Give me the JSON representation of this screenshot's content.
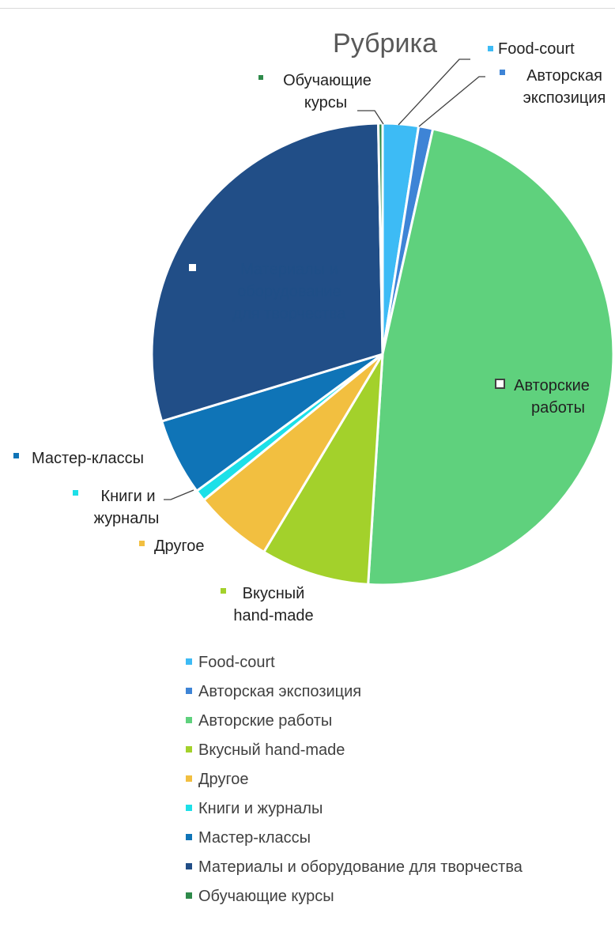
{
  "chart_data": {
    "type": "pie",
    "title": "Рубрика",
    "slices": [
      {
        "label": "Food-court",
        "value": 2.5,
        "color": "#3dbbf5"
      },
      {
        "label": "Авторская экспозиция",
        "value": 1.0,
        "color": "#3e84d6"
      },
      {
        "label": "Авторские работы",
        "value": 47.5,
        "color": "#5fd17d"
      },
      {
        "label": "Вкусный hand-made",
        "value": 7.6,
        "color": "#a3d12b"
      },
      {
        "label": "Другое",
        "value": 5.5,
        "color": "#f2bf40"
      },
      {
        "label": "Книги и журналы",
        "value": 0.8,
        "color": "#1de0e8"
      },
      {
        "label": "Мастер-классы",
        "value": 5.4,
        "color": "#0f74b7"
      },
      {
        "label": "Материалы и оборудование для творчества",
        "value": 29.4,
        "color": "#214e87"
      },
      {
        "label": "Обучающие курсы",
        "value": 0.3,
        "color": "#2e8a4a"
      }
    ],
    "legend_position": "bottom"
  },
  "chart_labels": {
    "food_court": "Food-court",
    "avt_exp_1": "Авторская",
    "avt_exp_2": "экспозиция",
    "avt_rab_1": "Авторские",
    "avt_rab_2": "работы",
    "vkus_1": "Вкусный",
    "vkus_2": "hand-made",
    "drugoe": "Другое",
    "knigi_1": "Книги и",
    "knigi_2": "журналы",
    "master": "Мастер-классы",
    "mat_1": "Материалы и",
    "mat_2": "оборудование",
    "mat_3": "для творчества",
    "obuch_1": "Обучающие",
    "obuch_2": "курсы"
  },
  "legend": [
    {
      "label": "Food-court",
      "color": "#3dbbf5"
    },
    {
      "label": "Авторская экспозиция",
      "color": "#3e84d6"
    },
    {
      "label": "Авторские работы",
      "color": "#5fd17d"
    },
    {
      "label": "Вкусный hand-made",
      "color": "#a3d12b"
    },
    {
      "label": "Другое",
      "color": "#f2bf40"
    },
    {
      "label": "Книги и журналы",
      "color": "#1de0e8"
    },
    {
      "label": "Мастер-классы",
      "color": "#0f74b7"
    },
    {
      "label": "Материалы и оборудование для творчества",
      "color": "#214e87"
    },
    {
      "label": "Обучающие курсы",
      "color": "#2e8a4a"
    }
  ]
}
